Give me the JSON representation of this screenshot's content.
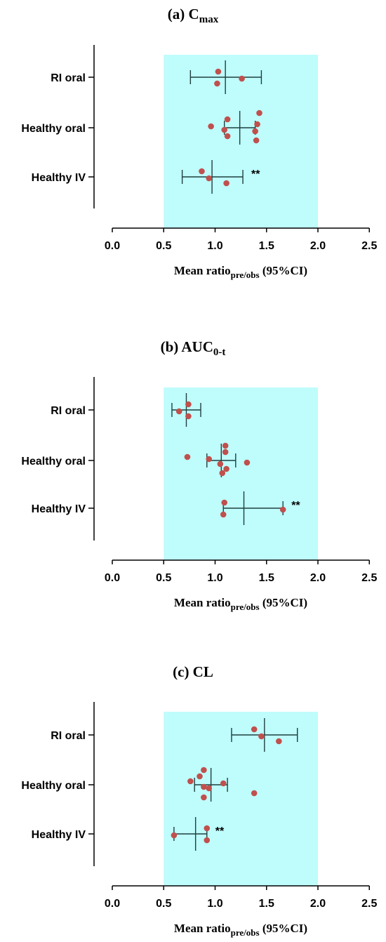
{
  "chart_data": [
    {
      "type": "scatter",
      "title": "(a) C",
      "title_subscript": "max",
      "xlabel": "Mean ratio",
      "xlabel_subscript": "pre/obs",
      "xlabel_suffix": " (95%CI)",
      "xlim": [
        0,
        2.5
      ],
      "xticks": [
        "0.0",
        "0.5",
        "1.0",
        "1.5",
        "2.0",
        "2.5"
      ],
      "shaded_range": [
        0.5,
        2.0
      ],
      "shade_color": "#bffcfc",
      "point_color": "#c0504d",
      "categories": [
        "RI oral",
        "Healthy oral",
        "Healthy IV"
      ],
      "series": [
        {
          "category": "RI oral",
          "mean": 1.1,
          "ci": [
            0.76,
            1.45
          ],
          "points": [
            1.03,
            1.26,
            1.02
          ],
          "significance": ""
        },
        {
          "category": "Healthy oral",
          "mean": 1.24,
          "ci": [
            1.09,
            1.39
          ],
          "points": [
            1.43,
            1.12,
            1.41,
            0.96,
            1.09,
            1.39,
            1.12,
            1.4
          ],
          "significance": ""
        },
        {
          "category": "Healthy IV",
          "mean": 0.97,
          "ci": [
            0.68,
            1.27
          ],
          "points": [
            0.87,
            0.94,
            1.11
          ],
          "significance": "**"
        }
      ]
    },
    {
      "type": "scatter",
      "title": "(b) AUC",
      "title_subscript": "0-t",
      "xlabel": "Mean ratio",
      "xlabel_subscript": "pre/obs",
      "xlabel_suffix": " (95%CI)",
      "xlim": [
        0,
        2.5
      ],
      "xticks": [
        "0.0",
        "0.5",
        "1.0",
        "1.5",
        "2.0",
        "2.5"
      ],
      "shaded_range": [
        0.5,
        2.0
      ],
      "shade_color": "#bffcfc",
      "point_color": "#c0504d",
      "categories": [
        "RI oral",
        "Healthy oral",
        "Healthy IV"
      ],
      "series": [
        {
          "category": "RI oral",
          "mean": 0.72,
          "ci": [
            0.58,
            0.86
          ],
          "points": [
            0.74,
            0.65,
            0.74
          ],
          "significance": ""
        },
        {
          "category": "Healthy oral",
          "mean": 1.06,
          "ci": [
            0.92,
            1.2
          ],
          "points": [
            1.1,
            1.1,
            0.73,
            0.94,
            1.31,
            1.05,
            1.11,
            1.07
          ],
          "significance": ""
        },
        {
          "category": "Healthy IV",
          "mean": 1.28,
          "ci": [
            1.08,
            1.66
          ],
          "points": [
            1.09,
            1.66,
            1.08
          ],
          "significance": "**"
        }
      ]
    },
    {
      "type": "scatter",
      "title": "(c) CL",
      "title_subscript": "",
      "xlabel": "Mean ratio",
      "xlabel_subscript": "pre/obs",
      "xlabel_suffix": " (95%CI)",
      "xlim": [
        0,
        2.5
      ],
      "xticks": [
        "0.0",
        "0.5",
        "1.0",
        "1.5",
        "2.0",
        "2.5"
      ],
      "shaded_range": [
        0.5,
        2.0
      ],
      "shade_color": "#bffcfc",
      "point_color": "#c0504d",
      "categories": [
        "RI oral",
        "Healthy oral",
        "Healthy IV"
      ],
      "series": [
        {
          "category": "RI oral",
          "mean": 1.48,
          "ci": [
            1.16,
            1.8
          ],
          "points": [
            1.38,
            1.45,
            1.62
          ],
          "significance": ""
        },
        {
          "category": "Healthy oral",
          "mean": 0.96,
          "ci": [
            0.8,
            1.12
          ],
          "points": [
            0.89,
            0.85,
            0.76,
            1.08,
            0.89,
            0.94,
            1.38,
            0.89
          ],
          "significance": ""
        },
        {
          "category": "Healthy IV",
          "mean": 0.81,
          "ci": [
            0.6,
            0.92
          ],
          "points": [
            0.92,
            0.6,
            0.92
          ],
          "significance": "**"
        }
      ]
    }
  ]
}
